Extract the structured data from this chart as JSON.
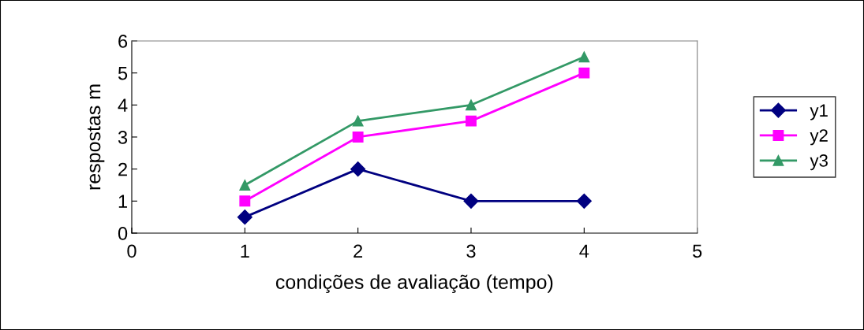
{
  "chart_data": {
    "type": "line",
    "xlabel": "condições de avaliação (tempo)",
    "ylabel": "respostas m",
    "x": [
      1,
      2,
      3,
      4
    ],
    "series": [
      {
        "name": "y1",
        "color": "#000080",
        "marker": "diamond",
        "values": [
          0.5,
          2,
          1,
          1
        ]
      },
      {
        "name": "y2",
        "color": "#ff00ff",
        "marker": "square",
        "values": [
          1,
          3,
          3.5,
          5
        ]
      },
      {
        "name": "y3",
        "color": "#339966",
        "marker": "triangle",
        "values": [
          1.5,
          3.5,
          4,
          5.5
        ]
      }
    ],
    "xlim": [
      0,
      5
    ],
    "xticks": [
      0,
      1,
      2,
      3,
      4,
      5
    ],
    "ylim": [
      0,
      6
    ],
    "yticks": [
      0,
      1,
      2,
      3,
      4,
      5,
      6
    ],
    "grid": false,
    "legend": "right",
    "line_style": "solid"
  }
}
